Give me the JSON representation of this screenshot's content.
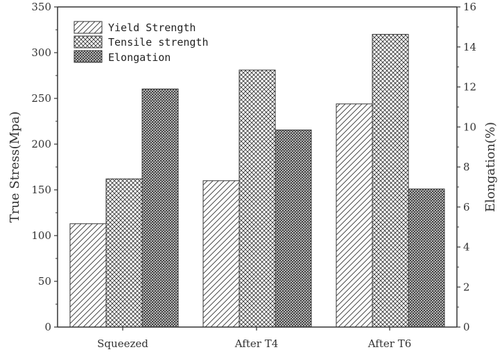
{
  "chart_data": {
    "type": "bar",
    "categories": [
      "Squeezed",
      "After T4",
      "After T6"
    ],
    "series": [
      {
        "name": "Yield Strength",
        "axis": "left",
        "pattern": "diagonal-hatch",
        "values": [
          113,
          160,
          244
        ]
      },
      {
        "name": "Tensile strength",
        "axis": "left",
        "pattern": "cross-hatch",
        "values": [
          162,
          281,
          320
        ]
      },
      {
        "name": "Elongation",
        "axis": "right",
        "pattern": "dense-cross-hatch",
        "values": [
          11.9,
          9.85,
          6.9
        ]
      }
    ],
    "ylabel": "True Stress(Mpa)",
    "y2label": "Elongation(%)",
    "ylim": [
      0,
      350
    ],
    "y2lim": [
      0,
      16
    ],
    "yticks": [
      0,
      50,
      100,
      150,
      200,
      250,
      300,
      350
    ],
    "y2ticks": [
      0,
      2,
      4,
      6,
      8,
      10,
      12,
      14,
      16
    ],
    "legend_position": "top-left",
    "grid": false,
    "colors": {
      "ink": "#333333",
      "bar_fill": "#ffffff"
    }
  }
}
